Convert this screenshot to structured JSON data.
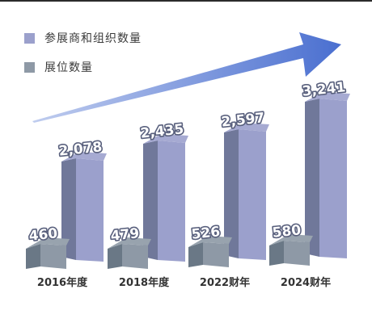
{
  "chart_data": {
    "type": "bar",
    "categories": [
      "2016年度",
      "2018年度",
      "2022财年",
      "2024财年"
    ],
    "series": [
      {
        "name": "参展商和组织数量",
        "values": [
          2078,
          2435,
          2597,
          3241
        ],
        "color": "#9ba0cc"
      },
      {
        "name": "展位数量",
        "values": [
          460,
          479,
          526,
          580
        ],
        "color": "#8e99a6"
      }
    ],
    "value_labels": {
      "参展商和组织数量": [
        "2,078",
        "2,435",
        "2,597",
        "3,241"
      ],
      "展位数量": [
        "460",
        "479",
        "526",
        "580"
      ]
    },
    "ylim": [
      0,
      3600
    ],
    "legend_position": "top-left",
    "grid": false,
    "style": "3d-bar",
    "trend_arrow_color": "#4a6fd0"
  }
}
